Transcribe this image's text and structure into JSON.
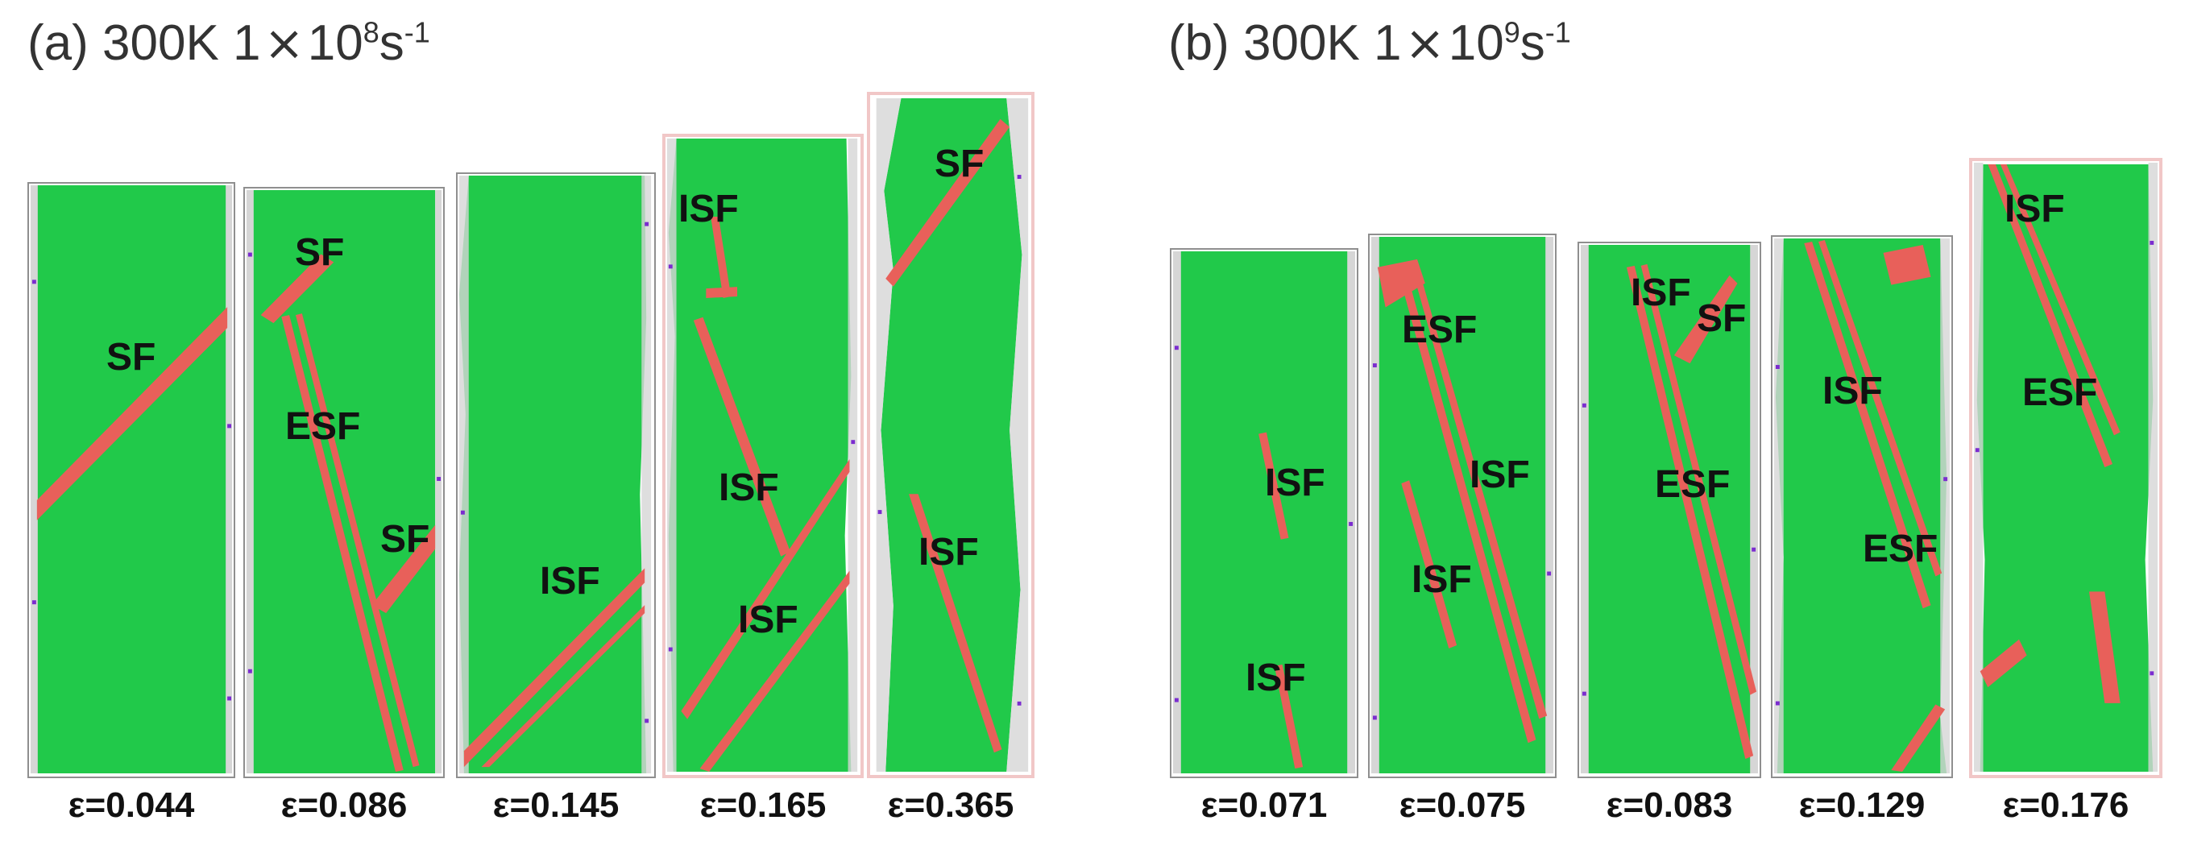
{
  "panel_a": {
    "prefix": "(a) 300K 1",
    "times": "×",
    "base": "10",
    "exp": "8",
    "unit": "s",
    "unit_exp": "-1",
    "strains": [
      "ε=0.044",
      "ε=0.086",
      "ε=0.145",
      "ε=0.165",
      "ε=0.365"
    ]
  },
  "panel_b": {
    "prefix": "(b) 300K 1",
    "times": "×",
    "base": "10",
    "exp": "9",
    "unit": "s",
    "unit_exp": "-1",
    "strains": [
      "ε=0.071",
      "ε=0.075",
      "ε=0.083",
      "ε=0.129",
      "ε=0.176"
    ]
  },
  "labels": {
    "a1": [
      "SF"
    ],
    "a2": [
      "SF",
      "ESF",
      "SF"
    ],
    "a3": [
      "ISF"
    ],
    "a4": [
      "ISF",
      "ISF",
      "ISF"
    ],
    "a5": [
      "SF",
      "ISF"
    ],
    "b1": [
      "ISF",
      "ISF"
    ],
    "b2": [
      "ESF",
      "ISF",
      "ISF"
    ],
    "b3": [
      "ISF",
      "SF",
      "ESF"
    ],
    "b4": [
      "ISF",
      "ESF"
    ],
    "b5": [
      "ISF",
      "ESF"
    ]
  },
  "colors": {
    "crystal": "#21c94a",
    "fault": "#e8605a",
    "surface": "#c9c9c9",
    "defect_atom": "#7b2ccf",
    "frame": "#8f8f8f"
  }
}
